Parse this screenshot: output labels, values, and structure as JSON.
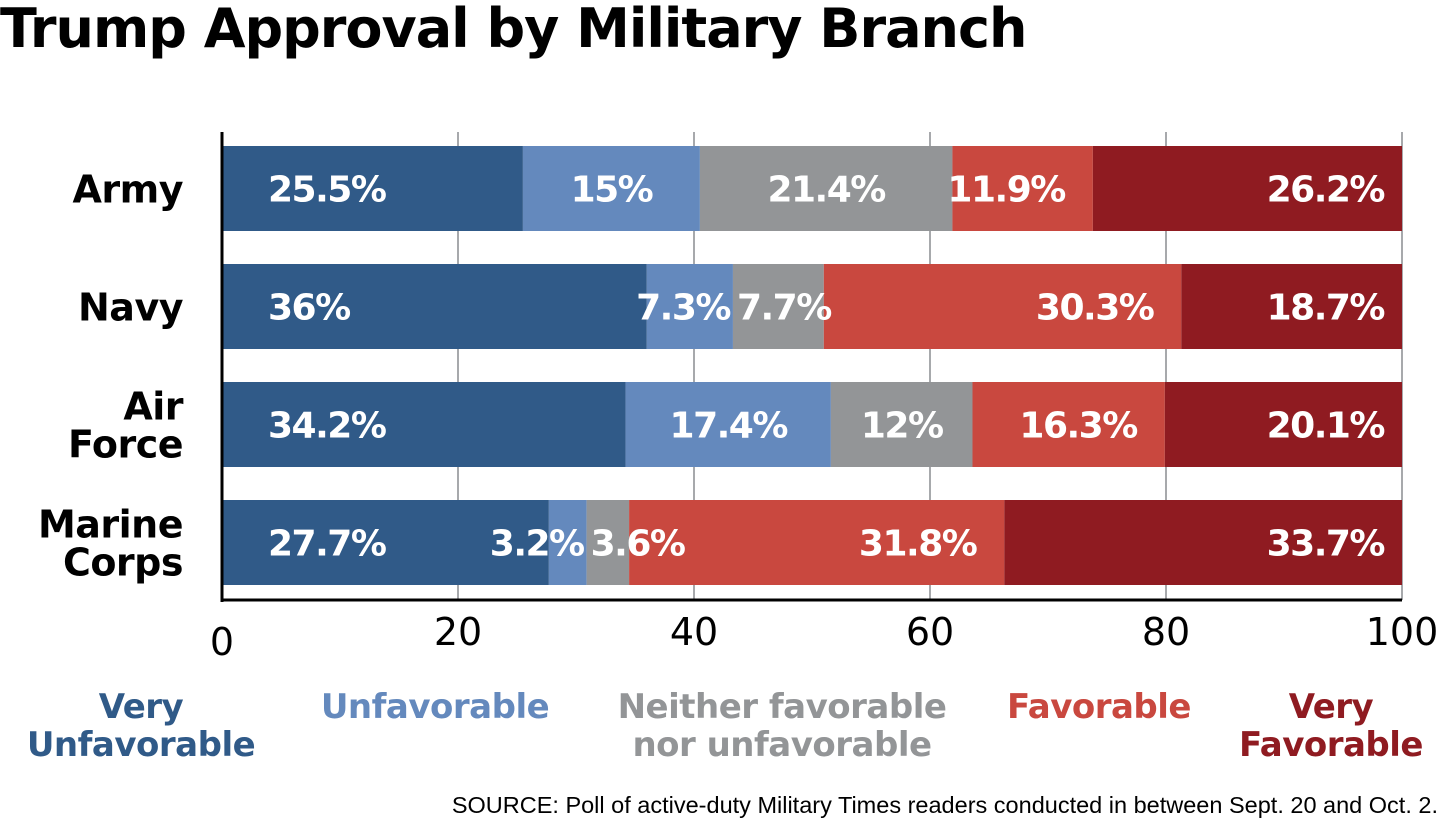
{
  "chart_data": {
    "type": "bar",
    "orientation": "horizontal",
    "stacked": true,
    "title": "Trump Approval by Military Branch",
    "categories": [
      [
        "Army"
      ],
      [
        "Navy"
      ],
      [
        "Air",
        "Force"
      ],
      [
        "Marine",
        "Corps"
      ]
    ],
    "series": [
      {
        "name": [
          "Very",
          "Unfavorable"
        ],
        "color": "#305a88",
        "values": [
          25.5,
          36,
          34.2,
          27.7
        ],
        "labels": [
          "25.5%",
          "36%",
          "34.2%",
          "27.7%"
        ]
      },
      {
        "name": [
          "Unfavorable"
        ],
        "color": "#6489bd",
        "values": [
          15,
          7.3,
          17.4,
          3.2
        ],
        "labels": [
          "15%",
          "7.3%",
          "17.4%",
          "3.2%"
        ]
      },
      {
        "name": [
          "Neither favorable",
          "nor unfavorable"
        ],
        "color": "#939597",
        "values": [
          21.4,
          7.7,
          12,
          3.6
        ],
        "labels": [
          "21.4%",
          "7.7%",
          "12%",
          "3.6%"
        ]
      },
      {
        "name": [
          "Favorable"
        ],
        "color": "#c9483f",
        "values": [
          11.9,
          30.3,
          16.3,
          31.8
        ],
        "labels": [
          "11.9%",
          "30.3%",
          "16.3%",
          "31.8%"
        ]
      },
      {
        "name": [
          "Very",
          "Favorable"
        ],
        "color": "#8f1b21",
        "values": [
          26.2,
          18.7,
          20.1,
          33.7
        ],
        "labels": [
          "26.2%",
          "18.7%",
          "20.1%",
          "33.7%"
        ]
      }
    ],
    "xlim": [
      0,
      100
    ],
    "xticks": [
      0,
      20,
      40,
      60,
      80,
      100
    ],
    "grid": true,
    "legend": "bottom",
    "source": "SOURCE: Poll of active-duty Military Times readers conducted in between Sept. 20 and Oct. 2."
  }
}
